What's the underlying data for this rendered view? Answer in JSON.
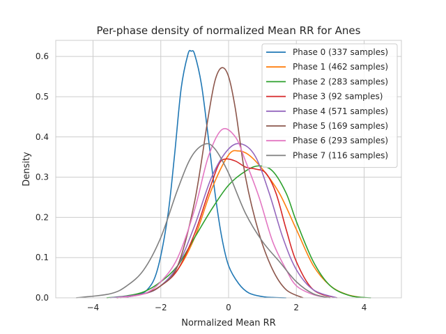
{
  "chart_data": {
    "type": "line",
    "title": "Per-phase density of normalized Mean RR for Anes",
    "xlabel": "Normalized Mean RR",
    "ylabel": "Density",
    "xlim": [
      -5.1,
      5.1
    ],
    "ylim": [
      0,
      0.64
    ],
    "xticks": [
      -4,
      -2,
      0,
      2,
      4
    ],
    "xtick_labels": [
      "−4",
      "−2",
      "0",
      "2",
      "4"
    ],
    "yticks": [
      0.0,
      0.1,
      0.2,
      0.3,
      0.4,
      0.5,
      0.6
    ],
    "ytick_labels": [
      "0.0",
      "0.1",
      "0.2",
      "0.3",
      "0.4",
      "0.5",
      "0.6"
    ],
    "grid": true,
    "legend_position": "top-right",
    "series": [
      {
        "name": "Phase 0 (337 samples)",
        "color": "#1f77b4",
        "x": [
          -3.3,
          -2.8,
          -2.4,
          -2.1,
          -1.8,
          -1.6,
          -1.4,
          -1.2,
          -1.1,
          -1.0,
          -0.8,
          -0.6,
          -0.4,
          -0.2,
          0.0,
          0.3,
          0.6,
          1.0,
          1.3,
          1.7
        ],
        "y": [
          0.0,
          0.005,
          0.02,
          0.07,
          0.2,
          0.35,
          0.52,
          0.605,
          0.613,
          0.605,
          0.53,
          0.4,
          0.26,
          0.15,
          0.08,
          0.035,
          0.012,
          0.003,
          0.001,
          0.0
        ]
      },
      {
        "name": "Phase 1 (462 samples)",
        "color": "#ff7f0e",
        "x": [
          -3.3,
          -2.5,
          -2.0,
          -1.5,
          -1.0,
          -0.5,
          0.0,
          0.3,
          0.6,
          1.0,
          1.5,
          2.0,
          2.5,
          3.0,
          3.5,
          4.0
        ],
        "y": [
          0.0,
          0.01,
          0.03,
          0.07,
          0.15,
          0.27,
          0.355,
          0.365,
          0.355,
          0.32,
          0.26,
          0.17,
          0.08,
          0.03,
          0.008,
          0.0
        ]
      },
      {
        "name": "Phase 2 (283 samples)",
        "color": "#2ca02c",
        "x": [
          -3.6,
          -3.0,
          -2.5,
          -2.0,
          -1.5,
          -1.0,
          -0.5,
          0.0,
          0.5,
          0.9,
          1.3,
          1.7,
          2.0,
          2.5,
          3.0,
          3.6,
          4.2
        ],
        "y": [
          0.0,
          0.005,
          0.015,
          0.04,
          0.08,
          0.15,
          0.22,
          0.28,
          0.315,
          0.328,
          0.315,
          0.26,
          0.19,
          0.09,
          0.03,
          0.005,
          0.0
        ]
      },
      {
        "name": "Phase 3 (92 samples)",
        "color": "#d62728",
        "x": [
          -3.3,
          -2.5,
          -2.0,
          -1.5,
          -1.0,
          -0.6,
          -0.3,
          -0.1,
          0.2,
          0.5,
          0.8,
          1.1,
          1.4,
          1.7,
          2.0,
          2.5,
          3.2
        ],
        "y": [
          0.0,
          0.01,
          0.03,
          0.07,
          0.16,
          0.26,
          0.33,
          0.345,
          0.34,
          0.325,
          0.32,
          0.31,
          0.26,
          0.17,
          0.09,
          0.02,
          0.0
        ]
      },
      {
        "name": "Phase 4 (571 samples)",
        "color": "#9467bd",
        "x": [
          -3.5,
          -2.5,
          -2.0,
          -1.5,
          -1.0,
          -0.5,
          0.0,
          0.4,
          0.8,
          1.2,
          1.6,
          2.0,
          2.5,
          3.2
        ],
        "y": [
          0.0,
          0.01,
          0.03,
          0.08,
          0.18,
          0.3,
          0.37,
          0.382,
          0.35,
          0.26,
          0.15,
          0.07,
          0.02,
          0.0
        ]
      },
      {
        "name": "Phase 5 (169 samples)",
        "color": "#8c564b",
        "x": [
          -3.2,
          -2.5,
          -2.0,
          -1.5,
          -1.0,
          -0.6,
          -0.4,
          -0.2,
          0.0,
          0.2,
          0.5,
          0.9,
          1.3,
          1.7,
          2.2
        ],
        "y": [
          0.0,
          0.01,
          0.03,
          0.08,
          0.24,
          0.45,
          0.54,
          0.572,
          0.55,
          0.47,
          0.3,
          0.16,
          0.07,
          0.02,
          0.0
        ]
      },
      {
        "name": "Phase 6 (293 samples)",
        "color": "#e377c2",
        "x": [
          -3.3,
          -2.5,
          -2.0,
          -1.5,
          -1.0,
          -0.6,
          -0.2,
          0.2,
          0.5,
          0.9,
          1.3,
          1.7,
          2.0,
          2.5,
          3.0
        ],
        "y": [
          0.0,
          0.01,
          0.04,
          0.1,
          0.22,
          0.35,
          0.418,
          0.4,
          0.34,
          0.25,
          0.14,
          0.07,
          0.03,
          0.008,
          0.0
        ]
      },
      {
        "name": "Phase 7 (116 samples)",
        "color": "#7f7f7f",
        "x": [
          -4.5,
          -3.5,
          -3.0,
          -2.5,
          -2.0,
          -1.5,
          -1.1,
          -0.7,
          -0.4,
          0.0,
          0.5,
          1.0,
          1.5,
          2.0,
          2.5,
          3.0
        ],
        "y": [
          0.0,
          0.01,
          0.03,
          0.07,
          0.15,
          0.27,
          0.35,
          0.382,
          0.37,
          0.31,
          0.21,
          0.14,
          0.09,
          0.04,
          0.01,
          0.0
        ]
      }
    ]
  }
}
